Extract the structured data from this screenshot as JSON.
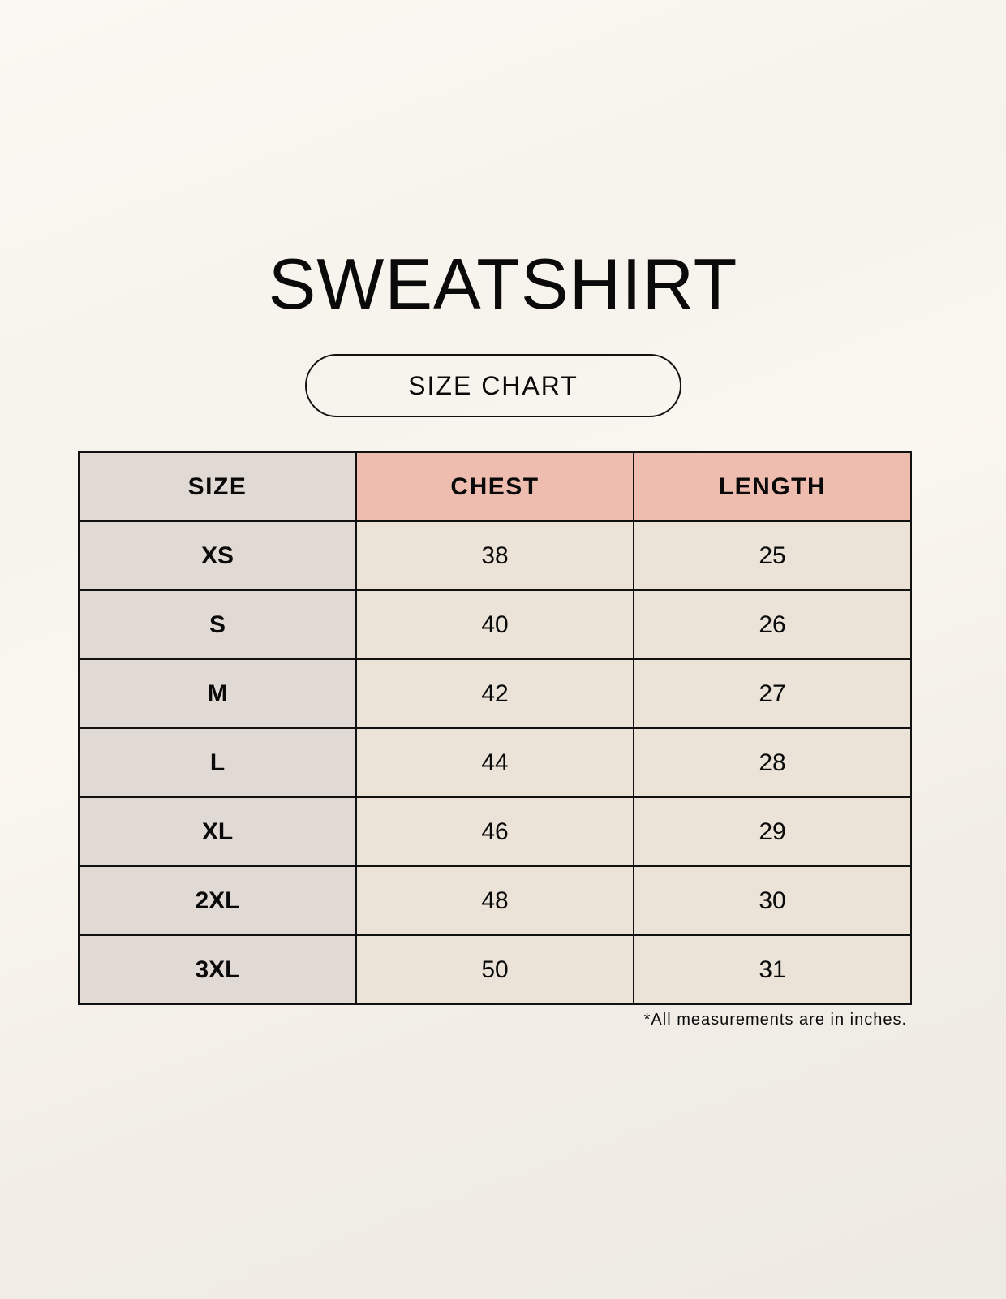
{
  "title": "SWEATSHIRT",
  "subtitle": "SIZE CHART",
  "table": {
    "headers": [
      "SIZE",
      "CHEST",
      "LENGTH"
    ],
    "rows": [
      [
        "XS",
        "38",
        "25"
      ],
      [
        "S",
        "40",
        "26"
      ],
      [
        "M",
        "42",
        "27"
      ],
      [
        "L",
        "44",
        "28"
      ],
      [
        "XL",
        "46",
        "29"
      ],
      [
        "2XL",
        "48",
        "30"
      ],
      [
        "3XL",
        "50",
        "31"
      ]
    ]
  },
  "footnote": "*All measurements are in inches.",
  "colors": {
    "size_column": "#e1d9d4",
    "header_accent": "#efbdb0",
    "cell": "#ebe3d8"
  }
}
